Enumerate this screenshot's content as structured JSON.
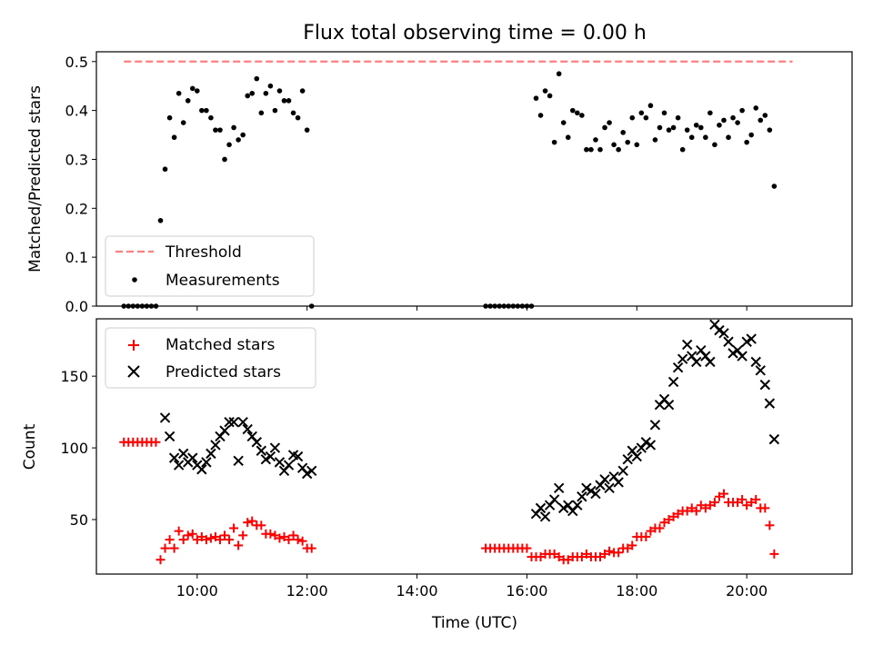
{
  "chart_data": [
    {
      "type": "scatter",
      "title": "Flux total observing time = 0.00 h",
      "xlabel": "",
      "ylabel": "Matched/Predicted stars",
      "xlim": [
        "08:10",
        "21:55"
      ],
      "ylim": [
        0,
        0.52
      ],
      "yticks": [
        "0.0",
        "0.1",
        "0.2",
        "0.3",
        "0.4",
        "0.5"
      ],
      "grid": false,
      "legend_position": "lower-left",
      "series": [
        {
          "name": "Threshold",
          "kind": "dashed-line",
          "color": "#ff7f7f",
          "x": [
            "08:40",
            "20:50"
          ],
          "y": [
            0.5,
            0.5
          ]
        },
        {
          "name": "Measurements",
          "kind": "points",
          "color": "#000000",
          "x": [
            "08:40",
            "08:45",
            "08:50",
            "08:55",
            "09:00",
            "09:05",
            "09:10",
            "09:15",
            "09:20",
            "09:25",
            "09:30",
            "09:35",
            "09:40",
            "09:45",
            "09:50",
            "09:55",
            "10:00",
            "10:05",
            "10:10",
            "10:15",
            "10:20",
            "10:25",
            "10:30",
            "10:35",
            "10:40",
            "10:45",
            "10:50",
            "10:55",
            "11:00",
            "11:05",
            "11:10",
            "11:15",
            "11:20",
            "11:25",
            "11:30",
            "11:35",
            "11:40",
            "11:45",
            "11:50",
            "11:55",
            "12:00",
            "12:05",
            "15:15",
            "15:20",
            "15:25",
            "15:30",
            "15:35",
            "15:40",
            "15:45",
            "15:50",
            "15:55",
            "16:00",
            "16:05",
            "16:10",
            "16:15",
            "16:20",
            "16:25",
            "16:30",
            "16:35",
            "16:40",
            "16:45",
            "16:50",
            "16:55",
            "17:00",
            "17:05",
            "17:10",
            "17:15",
            "17:20",
            "17:25",
            "17:30",
            "17:35",
            "17:40",
            "17:45",
            "17:50",
            "17:55",
            "18:00",
            "18:05",
            "18:10",
            "18:15",
            "18:20",
            "18:25",
            "18:30",
            "18:35",
            "18:40",
            "18:45",
            "18:50",
            "18:55",
            "19:00",
            "19:05",
            "19:10",
            "19:15",
            "19:20",
            "19:25",
            "19:30",
            "19:35",
            "19:40",
            "19:45",
            "19:50",
            "19:55",
            "20:00",
            "20:05",
            "20:10",
            "20:15",
            "20:20",
            "20:25",
            "20:30"
          ],
          "y": [
            0,
            0,
            0,
            0,
            0,
            0,
            0,
            0,
            0.175,
            0.28,
            0.385,
            0.345,
            0.435,
            0.375,
            0.42,
            0.445,
            0.44,
            0.4,
            0.4,
            0.385,
            0.36,
            0.36,
            0.3,
            0.33,
            0.365,
            0.34,
            0.35,
            0.43,
            0.435,
            0.465,
            0.395,
            0.435,
            0.45,
            0.4,
            0.44,
            0.42,
            0.42,
            0.395,
            0.385,
            0.44,
            0.36,
            0,
            0,
            0,
            0,
            0,
            0,
            0,
            0,
            0,
            0,
            0,
            0,
            0.425,
            0.39,
            0.44,
            0.43,
            0.335,
            0.475,
            0.375,
            0.345,
            0.4,
            0.395,
            0.39,
            0.32,
            0.32,
            0.34,
            0.32,
            0.365,
            0.375,
            0.33,
            0.32,
            0.355,
            0.335,
            0.385,
            0.33,
            0.395,
            0.385,
            0.41,
            0.34,
            0.365,
            0.395,
            0.36,
            0.365,
            0.385,
            0.32,
            0.36,
            0.345,
            0.37,
            0.365,
            0.345,
            0.395,
            0.33,
            0.37,
            0.38,
            0.345,
            0.385,
            0.375,
            0.4,
            0.335,
            0.35,
            0.405,
            0.38,
            0.39,
            0.36,
            0.245
          ]
        }
      ]
    },
    {
      "type": "scatter",
      "title": "",
      "xlabel": "Time (UTC)",
      "ylabel": "Count",
      "xlim": [
        "08:10",
        "21:55"
      ],
      "xticks": [
        "10:00",
        "12:00",
        "14:00",
        "16:00",
        "18:00",
        "20:00"
      ],
      "ylim": [
        12,
        190
      ],
      "yticks": [
        "50",
        "100",
        "150"
      ],
      "grid": false,
      "legend_position": "upper-left",
      "series": [
        {
          "name": "Matched stars",
          "kind": "plus",
          "color": "#ff0000",
          "x": [
            "08:40",
            "08:45",
            "08:50",
            "08:55",
            "09:00",
            "09:05",
            "09:10",
            "09:15",
            "09:20",
            "09:25",
            "09:30",
            "09:35",
            "09:40",
            "09:45",
            "09:50",
            "09:55",
            "10:00",
            "10:05",
            "10:10",
            "10:15",
            "10:20",
            "10:25",
            "10:30",
            "10:35",
            "10:40",
            "10:45",
            "10:50",
            "10:55",
            "11:00",
            "11:05",
            "11:10",
            "11:15",
            "11:20",
            "11:25",
            "11:30",
            "11:35",
            "11:40",
            "11:45",
            "11:50",
            "11:55",
            "12:00",
            "12:05",
            "15:15",
            "15:20",
            "15:25",
            "15:30",
            "15:35",
            "15:40",
            "15:45",
            "15:50",
            "15:55",
            "16:00",
            "16:05",
            "16:10",
            "16:15",
            "16:20",
            "16:25",
            "16:30",
            "16:35",
            "16:40",
            "16:45",
            "16:50",
            "16:55",
            "17:00",
            "17:05",
            "17:10",
            "17:15",
            "17:20",
            "17:25",
            "17:30",
            "17:35",
            "17:40",
            "17:45",
            "17:50",
            "17:55",
            "18:00",
            "18:05",
            "18:10",
            "18:15",
            "18:20",
            "18:25",
            "18:30",
            "18:35",
            "18:40",
            "18:45",
            "18:50",
            "18:55",
            "19:00",
            "19:05",
            "19:10",
            "19:15",
            "19:20",
            "19:25",
            "19:30",
            "19:35",
            "19:40",
            "19:45",
            "19:50",
            "19:55",
            "20:00",
            "20:05",
            "20:10",
            "20:15",
            "20:20",
            "20:25",
            "20:30"
          ],
          "y": [
            104,
            104,
            104,
            104,
            104,
            104,
            104,
            104,
            22,
            30,
            36,
            30,
            42,
            36,
            39,
            40,
            36,
            38,
            36,
            37,
            38,
            36,
            39,
            36,
            44,
            32,
            39,
            48,
            49,
            46,
            46,
            40,
            40,
            39,
            37,
            38,
            36,
            39,
            36,
            35,
            30,
            30,
            30,
            30,
            30,
            30,
            30,
            30,
            30,
            30,
            30,
            30,
            24,
            24,
            24,
            26,
            26,
            26,
            24,
            22,
            22,
            24,
            24,
            24,
            26,
            24,
            24,
            24,
            26,
            28,
            27,
            27,
            30,
            30,
            32,
            38,
            38,
            38,
            42,
            44,
            44,
            48,
            50,
            52,
            54,
            56,
            56,
            58,
            56,
            60,
            58,
            60,
            62,
            66,
            68,
            62,
            62,
            62,
            64,
            60,
            62,
            64,
            58,
            58,
            46,
            26
          ]
        },
        {
          "name": "Predicted stars",
          "kind": "x",
          "color": "#000000",
          "x": [
            "09:25",
            "09:30",
            "09:35",
            "09:40",
            "09:45",
            "09:50",
            "09:55",
            "10:00",
            "10:05",
            "10:10",
            "10:15",
            "10:20",
            "10:25",
            "10:30",
            "10:35",
            "10:40",
            "10:45",
            "10:50",
            "10:55",
            "11:00",
            "11:05",
            "11:10",
            "11:15",
            "11:20",
            "11:25",
            "11:30",
            "11:35",
            "11:40",
            "11:45",
            "11:50",
            "11:55",
            "12:00",
            "12:05",
            "16:10",
            "16:15",
            "16:20",
            "16:25",
            "16:30",
            "16:35",
            "16:40",
            "16:45",
            "16:50",
            "16:55",
            "17:00",
            "17:05",
            "17:10",
            "17:15",
            "17:20",
            "17:25",
            "17:30",
            "17:35",
            "17:40",
            "17:45",
            "17:50",
            "17:55",
            "18:00",
            "18:05",
            "18:10",
            "18:15",
            "18:20",
            "18:25",
            "18:30",
            "18:35",
            "18:40",
            "18:45",
            "18:50",
            "18:55",
            "19:00",
            "19:05",
            "19:10",
            "19:15",
            "19:20",
            "19:25",
            "19:30",
            "19:35",
            "19:40",
            "19:45",
            "19:50",
            "19:55",
            "20:00",
            "20:05",
            "20:10",
            "20:15",
            "20:20",
            "20:25",
            "20:30"
          ],
          "y": [
            121,
            108,
            93,
            88,
            96,
            90,
            93,
            88,
            85,
            90,
            96,
            102,
            108,
            112,
            118,
            118,
            91,
            118,
            113,
            108,
            104,
            98,
            92,
            94,
            100,
            90,
            84,
            88,
            95,
            94,
            86,
            82,
            84,
            54,
            58,
            52,
            60,
            64,
            72,
            58,
            60,
            56,
            60,
            66,
            72,
            70,
            68,
            74,
            78,
            72,
            80,
            76,
            84,
            92,
            98,
            94,
            100,
            104,
            102,
            116,
            130,
            134,
            130,
            146,
            156,
            162,
            172,
            164,
            160,
            168,
            164,
            160,
            186,
            182,
            180,
            174,
            166,
            168,
            164,
            174,
            176,
            160,
            154,
            144,
            131,
            106
          ]
        }
      ]
    }
  ]
}
